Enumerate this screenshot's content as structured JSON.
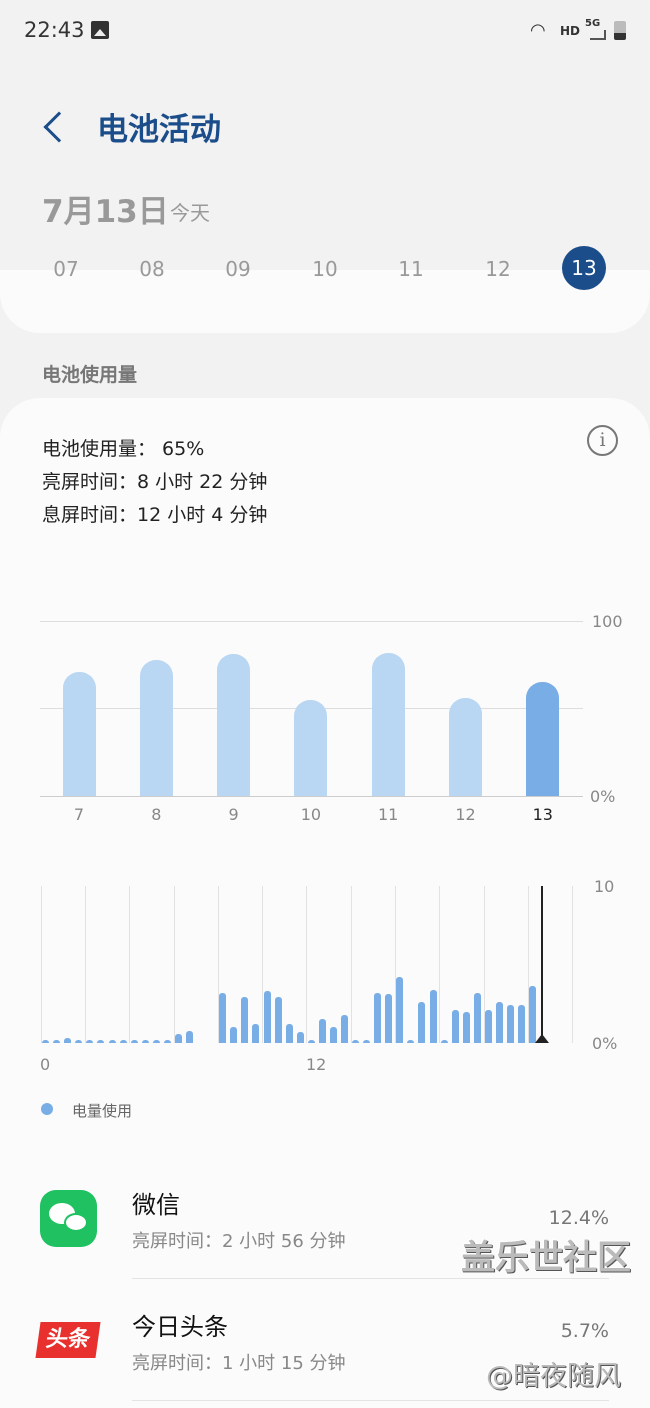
{
  "status_bar": {
    "time": "22:43",
    "icons": [
      "gallery-icon",
      "wifi-6-icon",
      "hd-icon",
      "5g-signal-icon",
      "battery-icon"
    ],
    "hd": "HD",
    "net": "5G"
  },
  "header": {
    "title": "电池活动",
    "back_icon": "chevron-left-icon"
  },
  "date": {
    "main": "7月13日",
    "sub": "今天",
    "days": [
      "07",
      "08",
      "09",
      "10",
      "11",
      "12",
      "13"
    ],
    "selected": "13"
  },
  "section_label": "电池使用量",
  "summary": {
    "usage": "电池使用量： 65%",
    "screen_on": "亮屏时间：8 小时 22 分钟",
    "screen_off": "息屏时间：12 小时 4 分钟"
  },
  "chart_data": [
    {
      "type": "bar",
      "categories": [
        "7",
        "8",
        "9",
        "10",
        "11",
        "12",
        "13"
      ],
      "values": [
        71,
        78,
        81,
        55,
        82,
        56,
        65
      ],
      "ylim": [
        0,
        100
      ],
      "ytick_labels": [
        "100",
        "0%"
      ],
      "highlight": "13",
      "colors": {
        "normal": "#b9d6f3",
        "selected": "#79ade5"
      }
    },
    {
      "type": "bar",
      "x_tick_labels": [
        "0",
        "12"
      ],
      "ytick_labels": [
        "10",
        "0%"
      ],
      "ylim": [
        0,
        10
      ],
      "interval": "half-hour",
      "current_time_marker": "22:24",
      "values": [
        0.1,
        0.1,
        0.3,
        0.05,
        0.1,
        0.05,
        0.1,
        0.1,
        0.05,
        0.1,
        0.1,
        0.05,
        0.6,
        0.75,
        0,
        0,
        3.2,
        1.0,
        2.9,
        1.2,
        3.3,
        2.9,
        1.2,
        0.7,
        0.1,
        1.5,
        1.0,
        1.8,
        0.1,
        0.05,
        3.2,
        3.1,
        4.2,
        0.1,
        2.6,
        3.4,
        0.2,
        2.1,
        2.0,
        3.2,
        2.1,
        2.6,
        2.4,
        2.4,
        3.6
      ],
      "legend": "电量使用",
      "color": "#79ade5",
      "legend_placement": "bottom-left"
    }
  ],
  "apps": [
    {
      "name": "微信",
      "sub": "亮屏时间：2 小时 56 分钟",
      "percent": "12.4%",
      "icon": "wechat-icon",
      "color": "#1fc160"
    },
    {
      "name": "今日头条",
      "sub": "亮屏时间：1 小时 15 分钟",
      "percent": "5.7%",
      "icon": "toutiao-icon",
      "icon_text": "头条",
      "color": "#e8312f"
    }
  ],
  "watermark": {
    "line1": "盖乐世社区",
    "line2": "@暗夜随风"
  }
}
